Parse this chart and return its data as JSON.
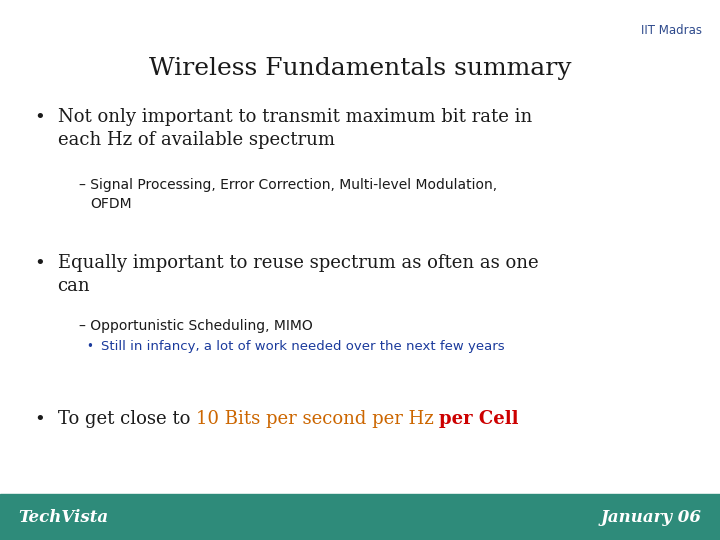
{
  "title": "Wireless Fundamentals summary",
  "title_fontsize": 18,
  "background_color": "#ffffff",
  "footer_color": "#2e8b7a",
  "footer_text_color": "#ffffff",
  "footer_left": "TechVista",
  "footer_right": "January 06",
  "iit_text": "IIT Madras",
  "iit_color": "#2e4a8c",
  "bullet1_main": "Not only important to transmit maximum bit rate in\neach Hz of available spectrum",
  "bullet1_sub_line1": "– Signal Processing, Error Correction, Multi-level Modulation,",
  "bullet1_sub_line2": "   OFDM",
  "bullet2_main": "Equally important to reuse spectrum as often as one\ncan",
  "bullet2_sub1": "– Opportunistic Scheduling, MIMO",
  "bullet2_sub2": "Still in infancy, a lot of work needed over the next few years",
  "bullet3_prefix": "To get close to ",
  "bullet3_colored": "10 Bits per second per Hz ",
  "bullet3_bold": "per Cell",
  "orange_color": "#cc6600",
  "red_color": "#cc0000",
  "blue_sub_color": "#1a3a9c",
  "black_color": "#1a1a1a",
  "bullet_fontsize": 13,
  "sub_fontsize": 10,
  "subsub_fontsize": 9.5,
  "footer_fontsize": 12
}
